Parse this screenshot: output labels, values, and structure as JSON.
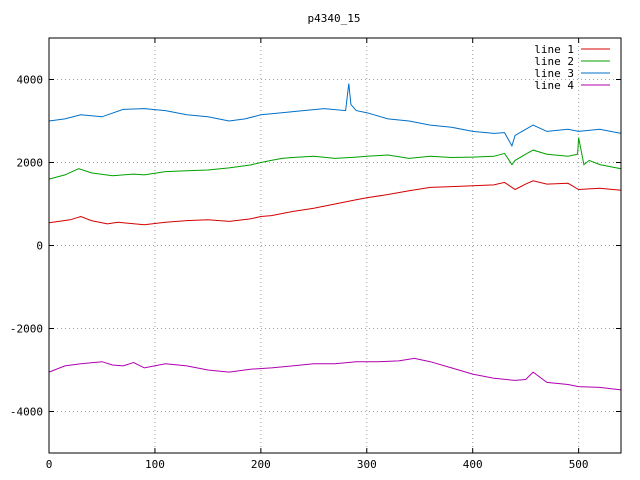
{
  "chart_data": {
    "type": "line",
    "title": "p4340_15",
    "xlabel": "",
    "ylabel": "",
    "xlim": [
      0,
      540
    ],
    "ylim": [
      -5000,
      5000
    ],
    "xticks": [
      0,
      100,
      200,
      300,
      400,
      500
    ],
    "yticks": [
      -4000,
      -2000,
      0,
      2000,
      4000
    ],
    "xtick_labels": [
      "0",
      "100",
      "200",
      "300",
      "400",
      "500"
    ],
    "ytick_labels": [
      "-4000",
      "-2000",
      "0",
      "2000",
      "4000"
    ],
    "grid": true,
    "legend_position": "top-right",
    "series": [
      {
        "name": "line 1",
        "color": "#d40000",
        "x": [
          0,
          20,
          30,
          40,
          55,
          65,
          90,
          110,
          130,
          150,
          170,
          190,
          200,
          210,
          230,
          250,
          270,
          290,
          300,
          320,
          340,
          360,
          380,
          400,
          420,
          430,
          440,
          450,
          457,
          470,
          490,
          500,
          520,
          540
        ],
        "values": [
          550,
          620,
          700,
          600,
          520,
          560,
          500,
          560,
          600,
          620,
          580,
          640,
          700,
          720,
          820,
          900,
          1000,
          1100,
          1150,
          1230,
          1320,
          1400,
          1420,
          1440,
          1460,
          1520,
          1350,
          1480,
          1560,
          1480,
          1500,
          1350,
          1380,
          1330
        ]
      },
      {
        "name": "line 2",
        "color": "#00a000",
        "x": [
          0,
          15,
          28,
          40,
          60,
          80,
          90,
          110,
          130,
          150,
          170,
          190,
          200,
          210,
          220,
          230,
          250,
          270,
          290,
          300,
          320,
          340,
          360,
          380,
          400,
          420,
          430,
          437,
          440,
          450,
          457,
          470,
          490,
          499,
          500,
          505,
          510,
          520,
          540
        ],
        "values": [
          1600,
          1700,
          1850,
          1750,
          1680,
          1720,
          1700,
          1780,
          1800,
          1820,
          1870,
          1940,
          2000,
          2050,
          2100,
          2120,
          2150,
          2100,
          2130,
          2150,
          2180,
          2100,
          2150,
          2120,
          2130,
          2150,
          2220,
          1950,
          2050,
          2200,
          2300,
          2200,
          2150,
          2200,
          2600,
          1950,
          2050,
          1950,
          1850
        ]
      },
      {
        "name": "line 3",
        "color": "#0070c8",
        "x": [
          0,
          15,
          30,
          50,
          70,
          90,
          110,
          130,
          150,
          170,
          185,
          200,
          220,
          240,
          260,
          280,
          283,
          285,
          290,
          300,
          320,
          340,
          360,
          380,
          400,
          420,
          430,
          437,
          440,
          450,
          457,
          470,
          490,
          500,
          520,
          540
        ],
        "values": [
          3000,
          3050,
          3150,
          3100,
          3280,
          3300,
          3250,
          3150,
          3100,
          3000,
          3050,
          3150,
          3200,
          3250,
          3300,
          3250,
          3900,
          3400,
          3250,
          3200,
          3050,
          3000,
          2900,
          2850,
          2750,
          2700,
          2720,
          2400,
          2650,
          2800,
          2900,
          2750,
          2800,
          2750,
          2800,
          2700
        ]
      },
      {
        "name": "line 4",
        "color": "#b000b0",
        "x": [
          0,
          15,
          30,
          50,
          60,
          70,
          80,
          90,
          110,
          130,
          150,
          170,
          190,
          210,
          230,
          250,
          270,
          290,
          310,
          330,
          345,
          360,
          380,
          400,
          420,
          440,
          450,
          457,
          470,
          490,
          500,
          520,
          540
        ],
        "values": [
          -3050,
          -2900,
          -2850,
          -2800,
          -2880,
          -2900,
          -2820,
          -2950,
          -2850,
          -2900,
          -3000,
          -3050,
          -2980,
          -2950,
          -2900,
          -2850,
          -2850,
          -2800,
          -2800,
          -2780,
          -2720,
          -2800,
          -2950,
          -3100,
          -3200,
          -3250,
          -3230,
          -3050,
          -3300,
          -3350,
          -3400,
          -3420,
          -3480
        ]
      }
    ]
  }
}
